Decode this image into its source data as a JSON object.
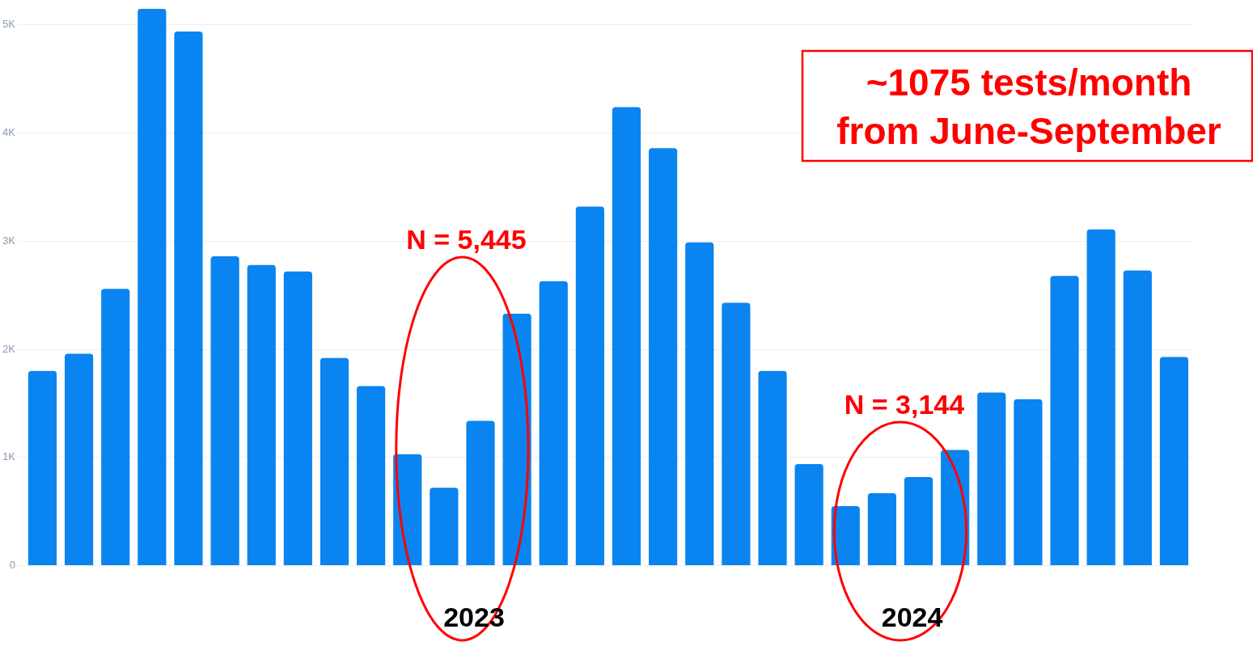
{
  "chart_data": {
    "type": "bar",
    "categories": [
      null,
      null,
      null,
      null,
      null,
      null,
      null,
      null,
      null,
      null,
      null,
      null,
      null,
      null,
      null,
      null,
      null,
      null,
      null,
      null,
      null,
      null,
      null,
      null,
      null,
      null,
      null,
      null,
      null,
      null,
      null,
      null
    ],
    "values": [
      1800,
      1960,
      2560,
      5150,
      4940,
      2860,
      2780,
      2720,
      1920,
      1660,
      1030,
      720,
      1340,
      2330,
      2630,
      3320,
      4240,
      3860,
      2990,
      2430,
      1800,
      940,
      550,
      670,
      820,
      1070,
      1600,
      1540,
      2680,
      3110,
      2730,
      1930
    ],
    "color": "#0a84f0",
    "ylim": [
      0,
      5150
    ],
    "yticks": [
      0,
      {
        "value": 1000,
        "label": "1K"
      },
      {
        "value": 2000,
        "label": "2K"
      },
      {
        "value": 3000,
        "label": "3K"
      },
      {
        "value": 4000,
        "label": "4K"
      },
      {
        "value": 5000,
        "label": "5K"
      }
    ],
    "grid": "y",
    "legend": false,
    "annotations": [
      "N = 5,445",
      "N = 3,144",
      "~1075 tests/month from June-September",
      "2023",
      "2024"
    ]
  }
}
